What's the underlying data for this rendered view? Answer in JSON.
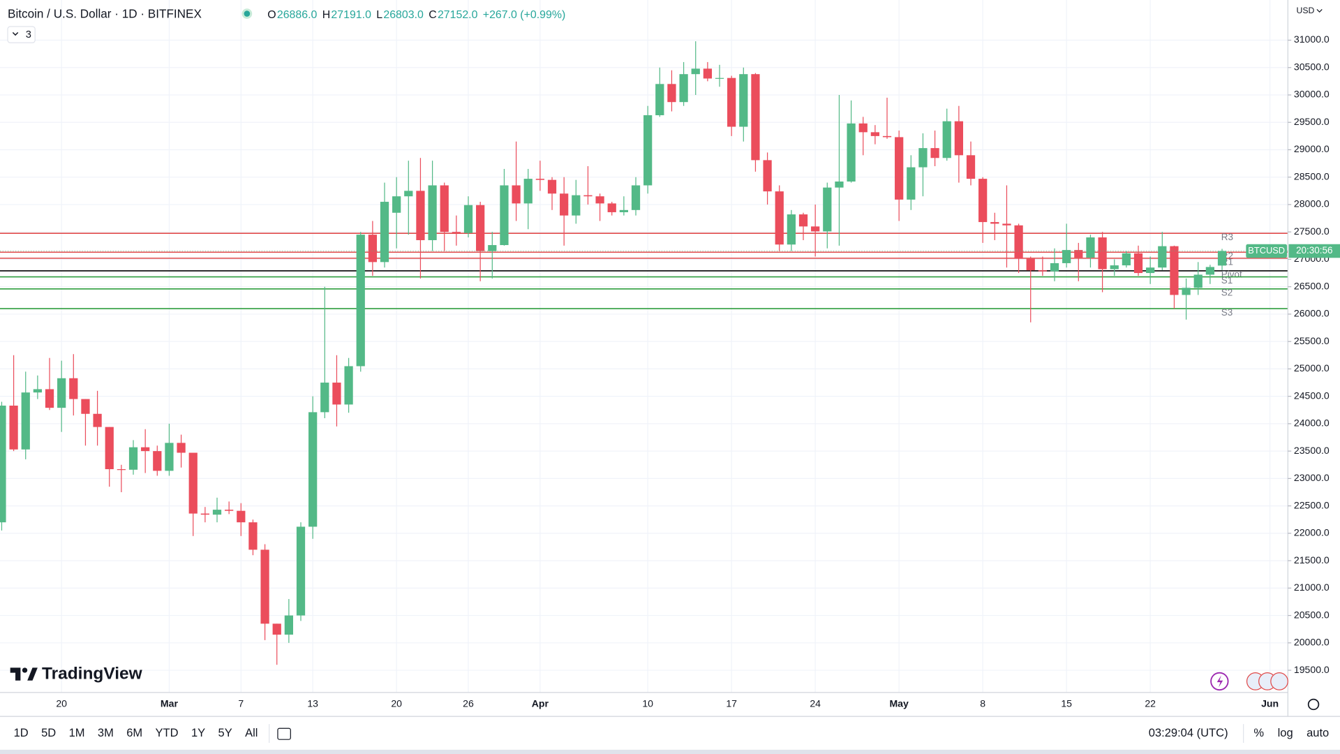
{
  "chart_data": {
    "type": "candlestick",
    "title": "Bitcoin / U.S. Dollar · 1D · BITFINEX",
    "legend_values": [
      {
        "prefix": "O",
        "text": "26886.0"
      },
      {
        "prefix": "H",
        "text": "27191.0"
      },
      {
        "prefix": "L",
        "text": "26803.0"
      },
      {
        "prefix": "C",
        "text": "27152.0"
      },
      {
        "prefix": "",
        "text": "+267.0 (+0.99%)"
      }
    ],
    "indicator_count": "3",
    "currency": "USD",
    "symbol_tag": "BTCUSD",
    "countdown": "20:30:56",
    "last_price": 27152,
    "up_color": "#53b987",
    "down_color": "#eb4d5c",
    "grid": true,
    "categories": [
      null,
      null,
      null,
      null,
      null,
      "20",
      null,
      null,
      null,
      null,
      null,
      null,
      null,
      null,
      "Mar",
      null,
      null,
      null,
      null,
      null,
      "7",
      null,
      null,
      null,
      null,
      null,
      "13",
      null,
      null,
      null,
      null,
      null,
      null,
      "20",
      null,
      null,
      null,
      null,
      null,
      "26",
      null,
      null,
      null,
      null,
      null,
      "Apr",
      null,
      null,
      null,
      null,
      null,
      null,
      null,
      null,
      "10",
      null,
      null,
      null,
      null,
      null,
      null,
      "17",
      null,
      null,
      null,
      null,
      null,
      null,
      "24",
      null,
      null,
      null,
      null,
      null,
      null,
      "May",
      null,
      null,
      null,
      null,
      null,
      null,
      "8",
      null,
      null,
      null,
      null,
      null,
      null,
      "15",
      null,
      null,
      null,
      null,
      null,
      null,
      "22",
      null,
      null,
      null,
      null,
      null,
      null,
      null,
      null,
      null,
      "Jun"
    ],
    "open": [
      22200,
      24330,
      23530,
      24570,
      24630,
      24290,
      24830,
      24450,
      24180,
      23940,
      23170,
      23160,
      23570,
      23500,
      23140,
      23650,
      23470,
      22360,
      22340,
      22430,
      22410,
      22200,
      21700,
      20350,
      20150,
      20500,
      22120,
      24210,
      24750,
      24350,
      25050,
      27450,
      26950,
      27850,
      28150,
      28250,
      27350,
      28350,
      27500,
      27480,
      27990,
      27150,
      27260,
      28350,
      28020,
      28470,
      28450,
      28200,
      27800,
      28170,
      28150,
      28020,
      27860,
      27900,
      28350,
      29630,
      30200,
      29870,
      30380,
      30480,
      30300,
      30310,
      29420,
      30380,
      28810,
      28240,
      27270,
      27820,
      27600,
      27510,
      28310,
      28420,
      29480,
      29320,
      29250,
      29230,
      28090,
      28680,
      29030,
      28850,
      29520,
      28900,
      28470,
      27680,
      27650,
      27620,
      27010,
      26800,
      26780,
      26930,
      27170,
      27030,
      27400,
      26820,
      26890,
      27110,
      26750,
      26850,
      27240,
      26350,
      26480,
      26720,
      26886,
      null,
      null,
      null,
      null
    ],
    "high": [
      24400,
      25250,
      24950,
      24880,
      25200,
      25150,
      25270,
      24450,
      24600,
      23940,
      23250,
      23700,
      23900,
      23600,
      24000,
      23800,
      23470,
      22480,
      22650,
      22580,
      22550,
      22250,
      21800,
      20350,
      20800,
      22200,
      24500,
      26500,
      25250,
      25200,
      27500,
      27700,
      28400,
      28500,
      28800,
      28850,
      28800,
      28400,
      27800,
      28150,
      28050,
      27500,
      28650,
      29150,
      28650,
      28800,
      28500,
      28500,
      28450,
      28700,
      28200,
      28050,
      28150,
      28500,
      29800,
      30500,
      30450,
      30600,
      30980,
      30600,
      30550,
      30350,
      30500,
      30400,
      28950,
      28350,
      27900,
      27850,
      28000,
      28400,
      30000,
      29900,
      29600,
      29450,
      29950,
      29350,
      28900,
      29300,
      29350,
      29750,
      29800,
      29150,
      28500,
      27850,
      28350,
      27650,
      27050,
      27050,
      27200,
      27650,
      27300,
      27450,
      27500,
      27000,
      27150,
      27250,
      27050,
      27500,
      27250,
      26650,
      26950,
      26900,
      27191,
      null,
      null,
      null,
      null
    ],
    "low": [
      22050,
      23500,
      23350,
      24450,
      24250,
      23850,
      24150,
      23600,
      23600,
      22850,
      22750,
      23070,
      23100,
      23050,
      23050,
      23200,
      21950,
      22200,
      22200,
      22350,
      21950,
      21600,
      20050,
      19600,
      20000,
      20400,
      21900,
      24100,
      23950,
      24200,
      24950,
      26700,
      26850,
      27200,
      27450,
      26650,
      27150,
      27150,
      27250,
      27400,
      26600,
      26650,
      27250,
      27700,
      27550,
      28250,
      27900,
      27250,
      27650,
      28000,
      27700,
      27800,
      27800,
      27800,
      28200,
      29600,
      29700,
      29800,
      30000,
      30250,
      30150,
      29250,
      29150,
      28600,
      28000,
      27150,
      27150,
      27350,
      27050,
      27200,
      27250,
      28400,
      28900,
      29100,
      29200,
      27700,
      27900,
      28150,
      28700,
      28800,
      28400,
      28350,
      27300,
      27350,
      26850,
      26750,
      25850,
      26700,
      26600,
      26850,
      26600,
      26850,
      26400,
      26700,
      26850,
      26700,
      26550,
      26800,
      26100,
      25900,
      26350,
      26550,
      26803,
      null,
      null,
      null,
      null
    ],
    "close": [
      24330,
      23530,
      24570,
      24630,
      24290,
      24830,
      24450,
      24180,
      23940,
      23170,
      23160,
      23570,
      23500,
      23140,
      23650,
      23470,
      22360,
      22340,
      22430,
      22410,
      22200,
      21700,
      20350,
      20150,
      20500,
      22120,
      24210,
      24750,
      24350,
      25050,
      27450,
      26950,
      28050,
      28150,
      28250,
      27350,
      28350,
      27500,
      27480,
      27990,
      27150,
      27260,
      28350,
      28020,
      28470,
      28450,
      28200,
      27800,
      28170,
      28150,
      28020,
      27860,
      27900,
      28350,
      29630,
      30200,
      29870,
      30380,
      30480,
      30300,
      30310,
      29420,
      30380,
      28810,
      28240,
      27270,
      27820,
      27600,
      27510,
      28310,
      28420,
      29480,
      29320,
      29250,
      29230,
      28090,
      28680,
      29030,
      28850,
      29520,
      28900,
      28470,
      27680,
      27650,
      27620,
      27010,
      26800,
      26780,
      26930,
      27170,
      27030,
      27400,
      26820,
      26890,
      27110,
      26750,
      26850,
      27240,
      26350,
      26480,
      26720,
      26860,
      27152,
      null,
      null,
      null,
      null
    ],
    "levels": [
      {
        "name": "R3",
        "value": 27475,
        "color": "#e04a4a"
      },
      {
        "name": "R2",
        "value": 27130,
        "color": "#e04a4a"
      },
      {
        "name": "R1",
        "value": 27020,
        "color": "#e04a4a"
      },
      {
        "name": "Pivot",
        "value": 26790,
        "color": "#000000"
      },
      {
        "name": "S1",
        "value": 26680,
        "color": "#2e9e3e"
      },
      {
        "name": "S2",
        "value": 26460,
        "color": "#2e9e3e"
      },
      {
        "name": "S3",
        "value": 26100,
        "color": "#2e9e3e"
      }
    ],
    "ylim": [
      19095,
      31733
    ],
    "yticks": [
      {
        "value": 19500,
        "label": "19500.0"
      },
      {
        "value": 20000,
        "label": "20000.0"
      },
      {
        "value": 20500,
        "label": "20500.0"
      },
      {
        "value": 21000,
        "label": "21000.0"
      },
      {
        "value": 21500,
        "label": "21500.0"
      },
      {
        "value": 22000,
        "label": "22000.0"
      },
      {
        "value": 22500,
        "label": "22500.0"
      },
      {
        "value": 23000,
        "label": "23000.0"
      },
      {
        "value": 23500,
        "label": "23500.0"
      },
      {
        "value": 24000,
        "label": "24000.0"
      },
      {
        "value": 24500,
        "label": "24500.0"
      },
      {
        "value": 25000,
        "label": "25000.0"
      },
      {
        "value": 25500,
        "label": "25500.0"
      },
      {
        "value": 26000,
        "label": "26000.0"
      },
      {
        "value": 26500,
        "label": "26500.0"
      },
      {
        "value": 27000,
        "label": "27000.0"
      },
      {
        "value": 27500,
        "label": "27500.0"
      },
      {
        "value": 28000,
        "label": "28000.0"
      },
      {
        "value": 28500,
        "label": "28500.0"
      },
      {
        "value": 29000,
        "label": "29000.0"
      },
      {
        "value": 29500,
        "label": "29500.0"
      },
      {
        "value": 30000,
        "label": "30000.0"
      },
      {
        "value": 30500,
        "label": "30500.0"
      },
      {
        "value": 31000,
        "label": "31000.0"
      }
    ]
  },
  "brand": "TradingView",
  "toolbar": {
    "ranges": [
      "1D",
      "5D",
      "1M",
      "3M",
      "6M",
      "YTD",
      "1Y",
      "5Y",
      "All"
    ],
    "clock": "03:29:04 (UTC)",
    "options": [
      "%",
      "log",
      "auto"
    ]
  }
}
